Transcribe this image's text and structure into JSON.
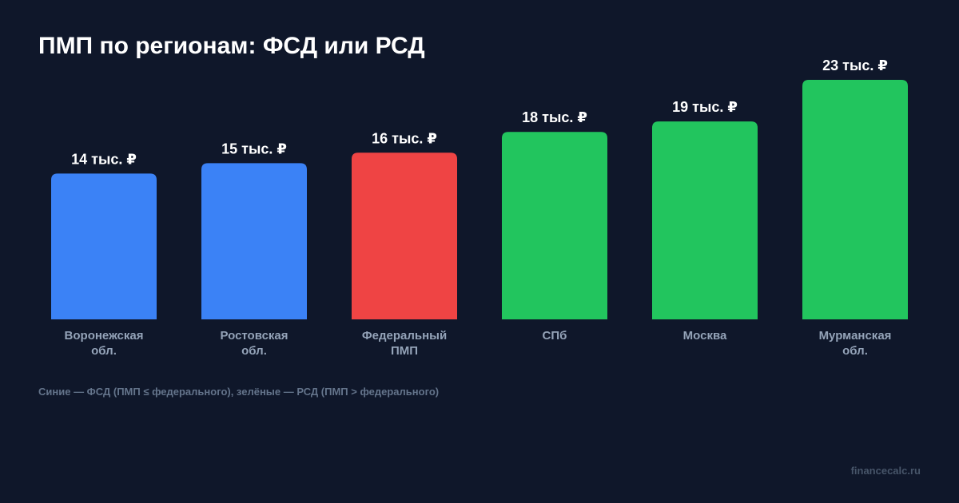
{
  "title": "ПМП по регионам: ФСД или РСД",
  "note": "Синие — ФСД (ПМП ≤ федерального), зелёные — РСД (ПМП > федерального)",
  "site": "financecalc.ru",
  "colors": {
    "background": "#0f172a",
    "fsd": "#3b82f6",
    "federal": "#ef4444",
    "rsd": "#22c55e"
  },
  "chart_data": {
    "type": "bar",
    "categories": [
      [
        "Воронежская",
        "обл."
      ],
      [
        "Ростовская",
        "обл."
      ],
      [
        "Федеральный",
        "ПМП"
      ],
      [
        "СПб"
      ],
      [
        "Москва"
      ],
      [
        "Мурманская",
        "обл."
      ]
    ],
    "values": [
      14,
      15,
      16,
      18,
      19,
      23
    ],
    "value_labels": [
      "14 тыс. ₽",
      "15 тыс. ₽",
      "16 тыс. ₽",
      "18 тыс. ₽",
      "19 тыс. ₽",
      "23 тыс. ₽"
    ],
    "bar_groups": [
      "fsd",
      "fsd",
      "federal",
      "rsd",
      "rsd",
      "rsd"
    ],
    "ylim": [
      0,
      23
    ],
    "grid": false,
    "legend": "none"
  }
}
